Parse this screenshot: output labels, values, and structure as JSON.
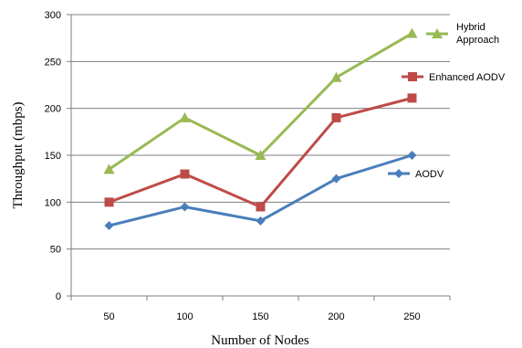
{
  "chart_data": {
    "type": "line",
    "title": "",
    "xlabel": "Number of Nodes",
    "ylabel": "Throughput (mbps)",
    "categories": [
      "50",
      "100",
      "150",
      "200",
      "250"
    ],
    "ylim": [
      0,
      300
    ],
    "yticks": [
      "0",
      "50",
      "100",
      "150",
      "200",
      "250",
      "300"
    ],
    "grid": "horizontal",
    "legend": "right",
    "series": [
      {
        "name": "AODV",
        "values": [
          75,
          95,
          80,
          125,
          150
        ],
        "color": "#4a7ebb",
        "marker": "diamond"
      },
      {
        "name": "Enhanced AODV",
        "values": [
          100,
          130,
          95,
          190,
          211
        ],
        "color": "#be4b48",
        "marker": "square"
      },
      {
        "name": "Hybrid Approach",
        "name_lines": [
          "Hybrid",
          "Approach"
        ],
        "values": [
          135,
          190,
          150,
          233,
          280
        ],
        "color": "#98b954",
        "marker": "triangle"
      }
    ]
  }
}
